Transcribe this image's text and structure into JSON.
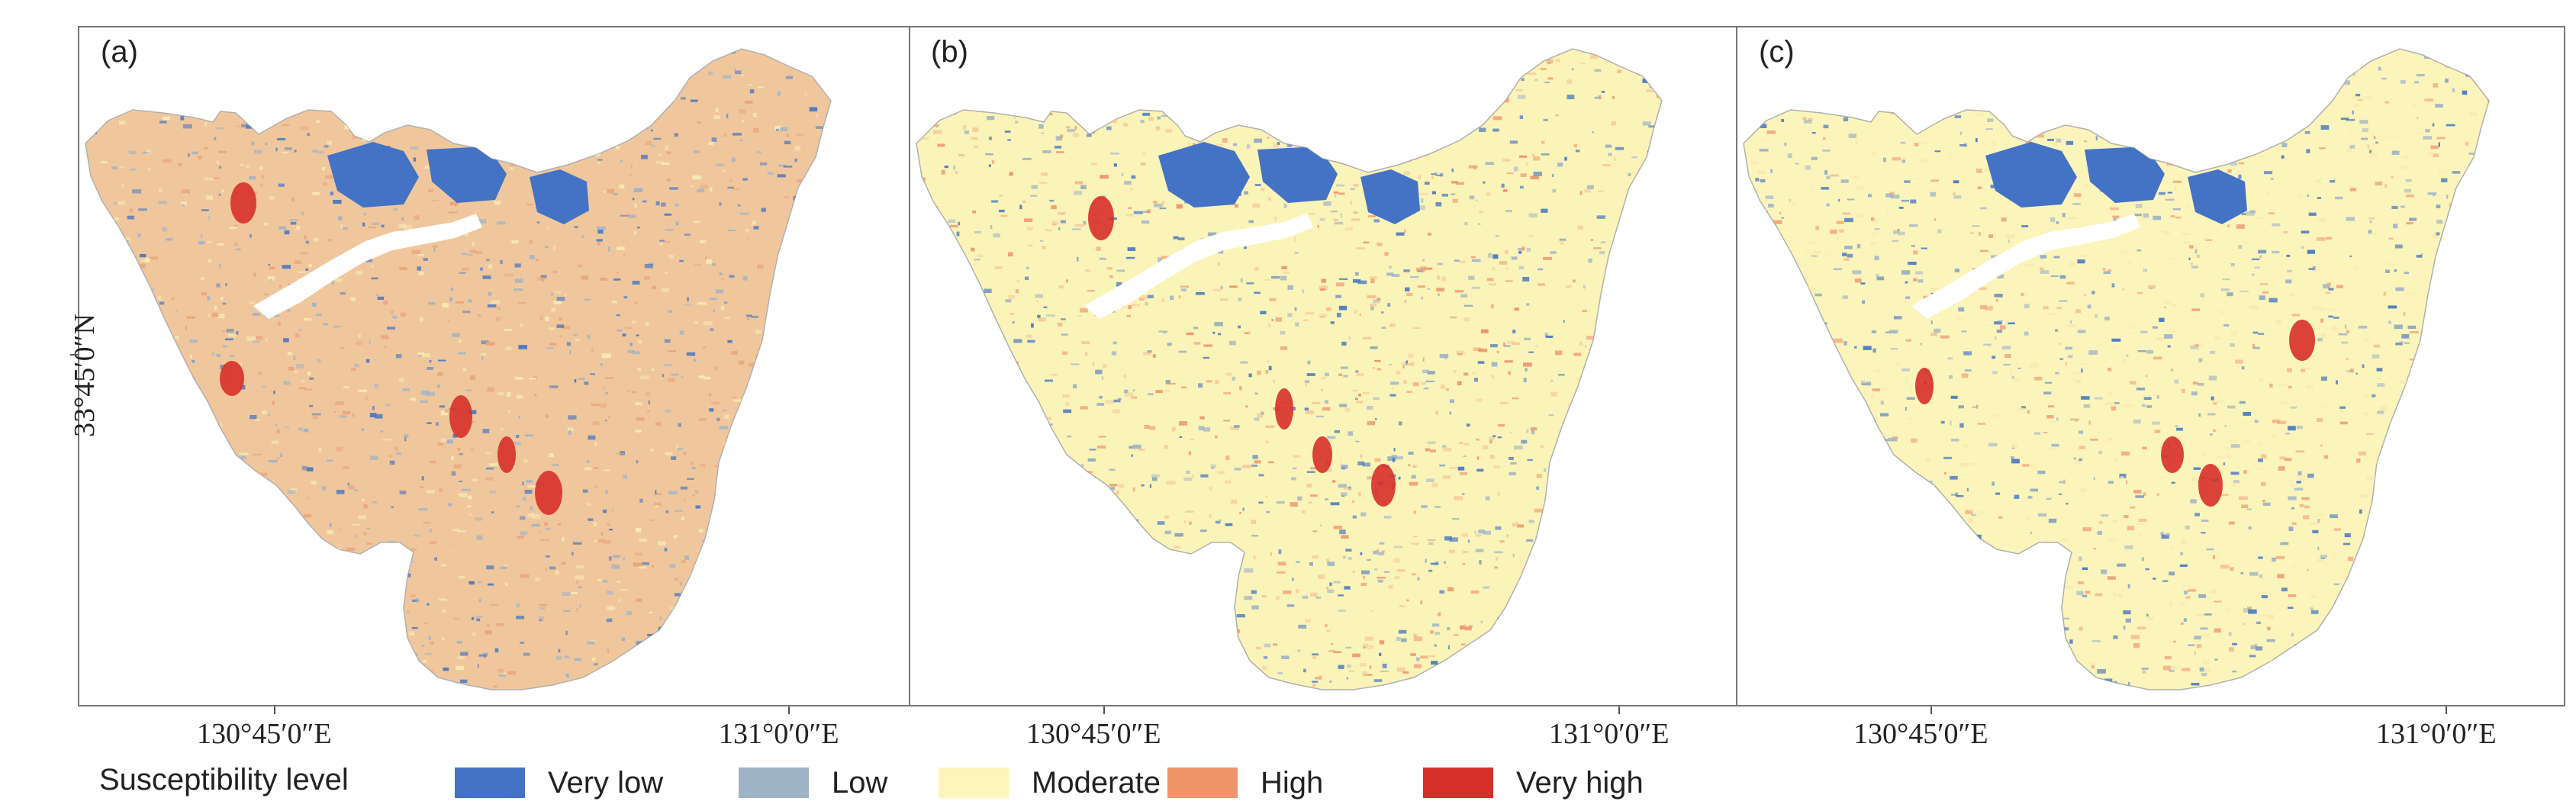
{
  "figure": {
    "panels": [
      {
        "label": "(a)",
        "base_color": "#f0c79d",
        "mix": [
          "#e9a57a",
          "#4a78c0",
          "#9fb3c6",
          "#f7edb4"
        ]
      },
      {
        "label": "(b)",
        "base_color": "#fbf4b8",
        "mix": [
          "#ed9068",
          "#f5c99a",
          "#4a78c0",
          "#9fb3c6"
        ]
      },
      {
        "label": "(c)",
        "base_color": "#fcf5bb",
        "mix": [
          "#4a78c0",
          "#9fb3c6",
          "#efa07a",
          "#f7e9ae"
        ]
      }
    ],
    "y_axis_label": "33°45′0″N",
    "x_axis_labels": [
      "130°45′0″E",
      "131°0′0″E"
    ]
  },
  "legend": {
    "title": "Susceptibility level",
    "items": [
      {
        "label": "Very low",
        "color": "#4472c4"
      },
      {
        "label": "Low",
        "color": "#9fb3c6"
      },
      {
        "label": "Moderate",
        "color": "#fdf5b9"
      },
      {
        "label": "High",
        "color": "#f0956a"
      },
      {
        "label": "Very high",
        "color": "#d7302a"
      }
    ]
  },
  "map_colors": {
    "very_low": "#4472c4",
    "very_high": "#d7302a",
    "river": "#ffffff"
  }
}
